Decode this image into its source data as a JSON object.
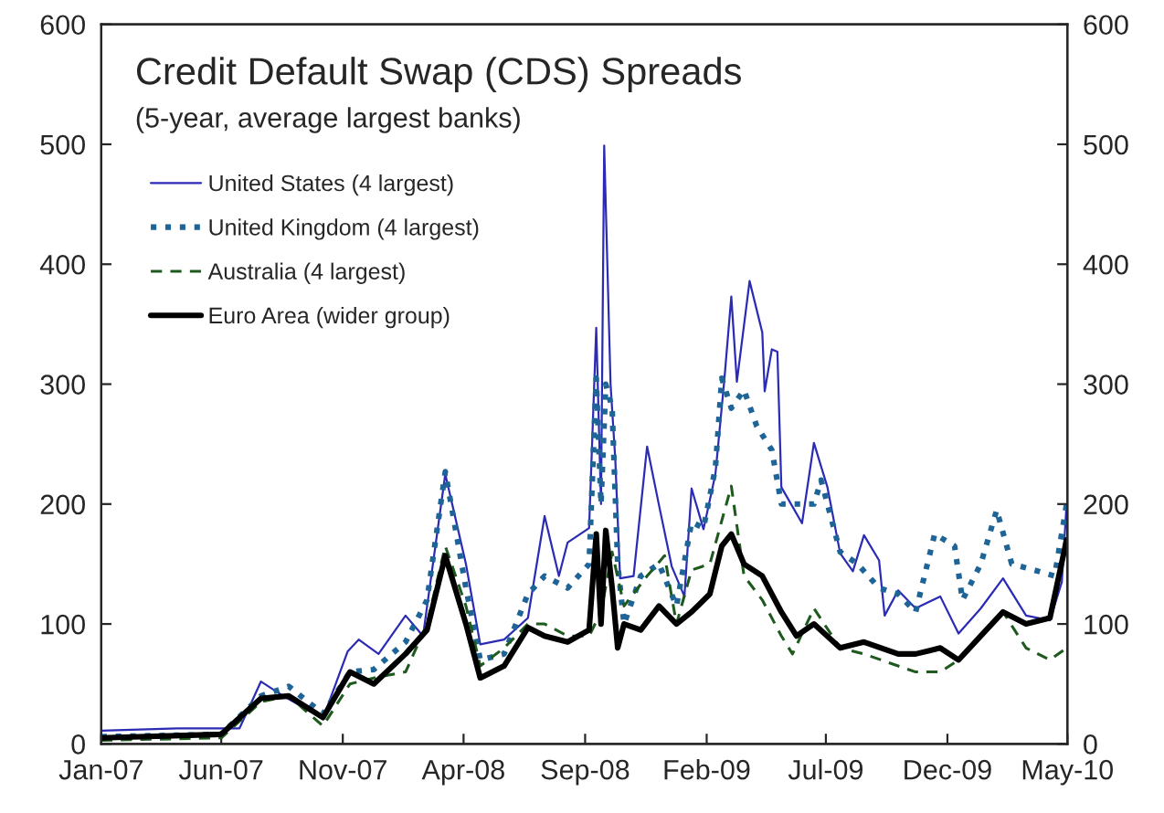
{
  "chart_data": {
    "type": "line",
    "title": "Credit Default Swap (CDS) Spreads",
    "subtitle": "(5-year, average largest banks)",
    "xlim": [
      "2007-01-01",
      "2010-05-01"
    ],
    "xticks": [
      {
        "value": "2007-01-01",
        "label": "Jan-07"
      },
      {
        "value": "2007-06-01",
        "label": "Jun-07"
      },
      {
        "value": "2007-11-01",
        "label": "Nov-07"
      },
      {
        "value": "2008-04-01",
        "label": "Apr-08"
      },
      {
        "value": "2008-09-01",
        "label": "Sep-08"
      },
      {
        "value": "2009-02-01",
        "label": "Feb-09"
      },
      {
        "value": "2009-07-01",
        "label": "Jul-09"
      },
      {
        "value": "2009-12-01",
        "label": "Dec-09"
      },
      {
        "value": "2010-05-01",
        "label": "May-10"
      }
    ],
    "ylim": [
      0,
      600
    ],
    "yticks": [
      0,
      100,
      200,
      300,
      400,
      500,
      600
    ],
    "y2lim": [
      0,
      600
    ],
    "y2ticks": [
      0,
      100,
      200,
      300,
      400,
      500,
      600
    ],
    "grid": false,
    "legend": "top left",
    "series": [
      {
        "name": "United States (4 largest)",
        "color": "#2b2bb5",
        "line_style": "solid",
        "x": [
          "2007-01-01",
          "2007-04-07",
          "2007-06-24",
          "2007-07-21",
          "2007-08-18",
          "2007-10-07",
          "2007-11-07",
          "2007-11-21",
          "2007-12-16",
          "2008-01-19",
          "2008-02-10",
          "2008-03-09",
          "2008-04-04",
          "2008-04-22",
          "2008-05-22",
          "2008-06-21",
          "2008-07-12",
          "2008-07-30",
          "2008-08-10",
          "2008-09-06",
          "2008-09-15",
          "2008-09-21",
          "2008-09-25",
          "2008-10-03",
          "2008-10-09",
          "2008-10-15",
          "2008-11-01",
          "2008-11-18",
          "2008-12-03",
          "2008-12-19",
          "2009-01-04",
          "2009-01-13",
          "2009-01-28",
          "2009-02-12",
          "2009-02-23",
          "2009-03-04",
          "2009-03-11",
          "2009-03-27",
          "2009-04-12",
          "2009-04-15",
          "2009-04-24",
          "2009-05-01",
          "2009-05-06",
          "2009-06-01",
          "2009-06-16",
          "2009-07-03",
          "2009-07-19",
          "2009-08-04",
          "2009-08-18",
          "2009-09-06",
          "2009-09-13",
          "2009-09-30",
          "2009-10-22",
          "2009-11-22",
          "2009-12-15",
          "2010-01-12",
          "2010-02-09",
          "2010-03-10",
          "2010-04-09",
          "2010-04-24",
          "2010-04-30"
        ],
        "values": [
          11,
          13,
          13,
          52,
          40,
          21,
          77,
          87,
          75,
          107,
          90,
          225,
          150,
          83,
          87,
          105,
          190,
          140,
          168,
          180,
          347,
          200,
          499,
          300,
          237,
          138,
          140,
          248,
          199,
          148,
          123,
          213,
          179,
          225,
          302,
          373,
          302,
          386,
          343,
          294,
          329,
          327,
          214,
          184,
          251,
          214,
          159,
          144,
          174,
          153,
          107,
          128,
          113,
          123,
          92,
          113,
          138,
          107,
          103,
          135,
          200
        ]
      },
      {
        "name": "United Kingdom (4 largest)",
        "color": "#1f6496",
        "line_style": "dotted",
        "x": [
          "2007-01-01",
          "2007-06-01",
          "2007-07-21",
          "2007-08-25",
          "2007-10-07",
          "2007-11-10",
          "2007-12-10",
          "2008-01-19",
          "2008-02-15",
          "2008-03-09",
          "2008-04-04",
          "2008-04-22",
          "2008-05-22",
          "2008-06-21",
          "2008-07-12",
          "2008-08-10",
          "2008-09-06",
          "2008-09-15",
          "2008-09-21",
          "2008-09-27",
          "2008-10-05",
          "2008-10-12",
          "2008-10-20",
          "2008-11-10",
          "2008-12-03",
          "2008-12-25",
          "2009-01-13",
          "2009-01-28",
          "2009-02-12",
          "2009-02-20",
          "2009-03-04",
          "2009-03-20",
          "2009-04-05",
          "2009-04-24",
          "2009-05-06",
          "2009-05-25",
          "2009-06-16",
          "2009-06-25",
          "2009-07-19",
          "2009-08-10",
          "2009-09-06",
          "2009-09-30",
          "2009-10-22",
          "2009-11-15",
          "2009-12-10",
          "2009-12-20",
          "2010-01-12",
          "2010-02-01",
          "2010-02-20",
          "2010-03-20",
          "2010-04-15",
          "2010-04-30"
        ],
        "values": [
          6,
          8,
          40,
          48,
          25,
          60,
          62,
          85,
          120,
          227,
          130,
          70,
          75,
          125,
          140,
          130,
          150,
          305,
          200,
          300,
          280,
          150,
          100,
          140,
          150,
          115,
          185,
          180,
          230,
          305,
          280,
          295,
          265,
          245,
          200,
          200,
          200,
          220,
          160,
          150,
          130,
          125,
          110,
          175,
          165,
          120,
          150,
          195,
          150,
          145,
          140,
          200
        ]
      },
      {
        "name": "Australia (4 largest)",
        "color": "#1e5a1e",
        "line_style": "dashed",
        "x": [
          "2007-01-01",
          "2007-06-01",
          "2007-07-21",
          "2007-08-25",
          "2007-10-07",
          "2007-11-10",
          "2007-12-10",
          "2008-01-19",
          "2008-02-15",
          "2008-03-09",
          "2008-04-04",
          "2008-04-22",
          "2008-05-22",
          "2008-06-21",
          "2008-07-12",
          "2008-08-10",
          "2008-09-06",
          "2008-09-21",
          "2008-10-05",
          "2008-10-20",
          "2008-11-18",
          "2008-12-10",
          "2008-12-25",
          "2009-01-13",
          "2009-02-05",
          "2009-03-04",
          "2009-03-20",
          "2009-04-12",
          "2009-05-06",
          "2009-05-20",
          "2009-06-16",
          "2009-07-19",
          "2009-08-18",
          "2009-09-30",
          "2009-10-22",
          "2009-11-22",
          "2009-12-15",
          "2010-01-12",
          "2010-02-09",
          "2010-03-10",
          "2010-04-09",
          "2010-04-30"
        ],
        "values": [
          3,
          5,
          35,
          40,
          15,
          50,
          55,
          60,
          100,
          165,
          115,
          65,
          80,
          100,
          100,
          90,
          90,
          110,
          160,
          115,
          140,
          157,
          100,
          145,
          150,
          215,
          140,
          120,
          90,
          75,
          113,
          80,
          75,
          65,
          60,
          60,
          70,
          90,
          110,
          80,
          70,
          80
        ]
      },
      {
        "name": "Euro Area (wider group)",
        "color": "#000000",
        "line_style": "solid",
        "x": [
          "2007-01-01",
          "2007-06-01",
          "2007-07-21",
          "2007-08-25",
          "2007-10-07",
          "2007-11-10",
          "2007-12-10",
          "2008-01-19",
          "2008-02-15",
          "2008-03-09",
          "2008-04-04",
          "2008-04-22",
          "2008-05-22",
          "2008-06-21",
          "2008-07-12",
          "2008-08-10",
          "2008-09-06",
          "2008-09-15",
          "2008-09-21",
          "2008-09-27",
          "2008-10-05",
          "2008-10-12",
          "2008-10-20",
          "2008-11-10",
          "2008-12-03",
          "2008-12-25",
          "2009-01-13",
          "2009-02-05",
          "2009-02-20",
          "2009-03-04",
          "2009-03-20",
          "2009-04-12",
          "2009-05-06",
          "2009-05-25",
          "2009-06-16",
          "2009-07-19",
          "2009-08-18",
          "2009-09-30",
          "2009-10-22",
          "2009-11-22",
          "2009-12-15",
          "2010-01-12",
          "2010-02-09",
          "2010-03-10",
          "2010-04-09",
          "2010-04-30"
        ],
        "values": [
          5,
          8,
          38,
          40,
          22,
          60,
          50,
          75,
          95,
          157,
          100,
          55,
          65,
          97,
          90,
          85,
          95,
          175,
          100,
          178,
          130,
          80,
          100,
          95,
          115,
          100,
          110,
          125,
          165,
          175,
          150,
          140,
          110,
          90,
          100,
          80,
          85,
          75,
          75,
          80,
          70,
          90,
          110,
          100,
          105,
          170
        ]
      }
    ]
  }
}
